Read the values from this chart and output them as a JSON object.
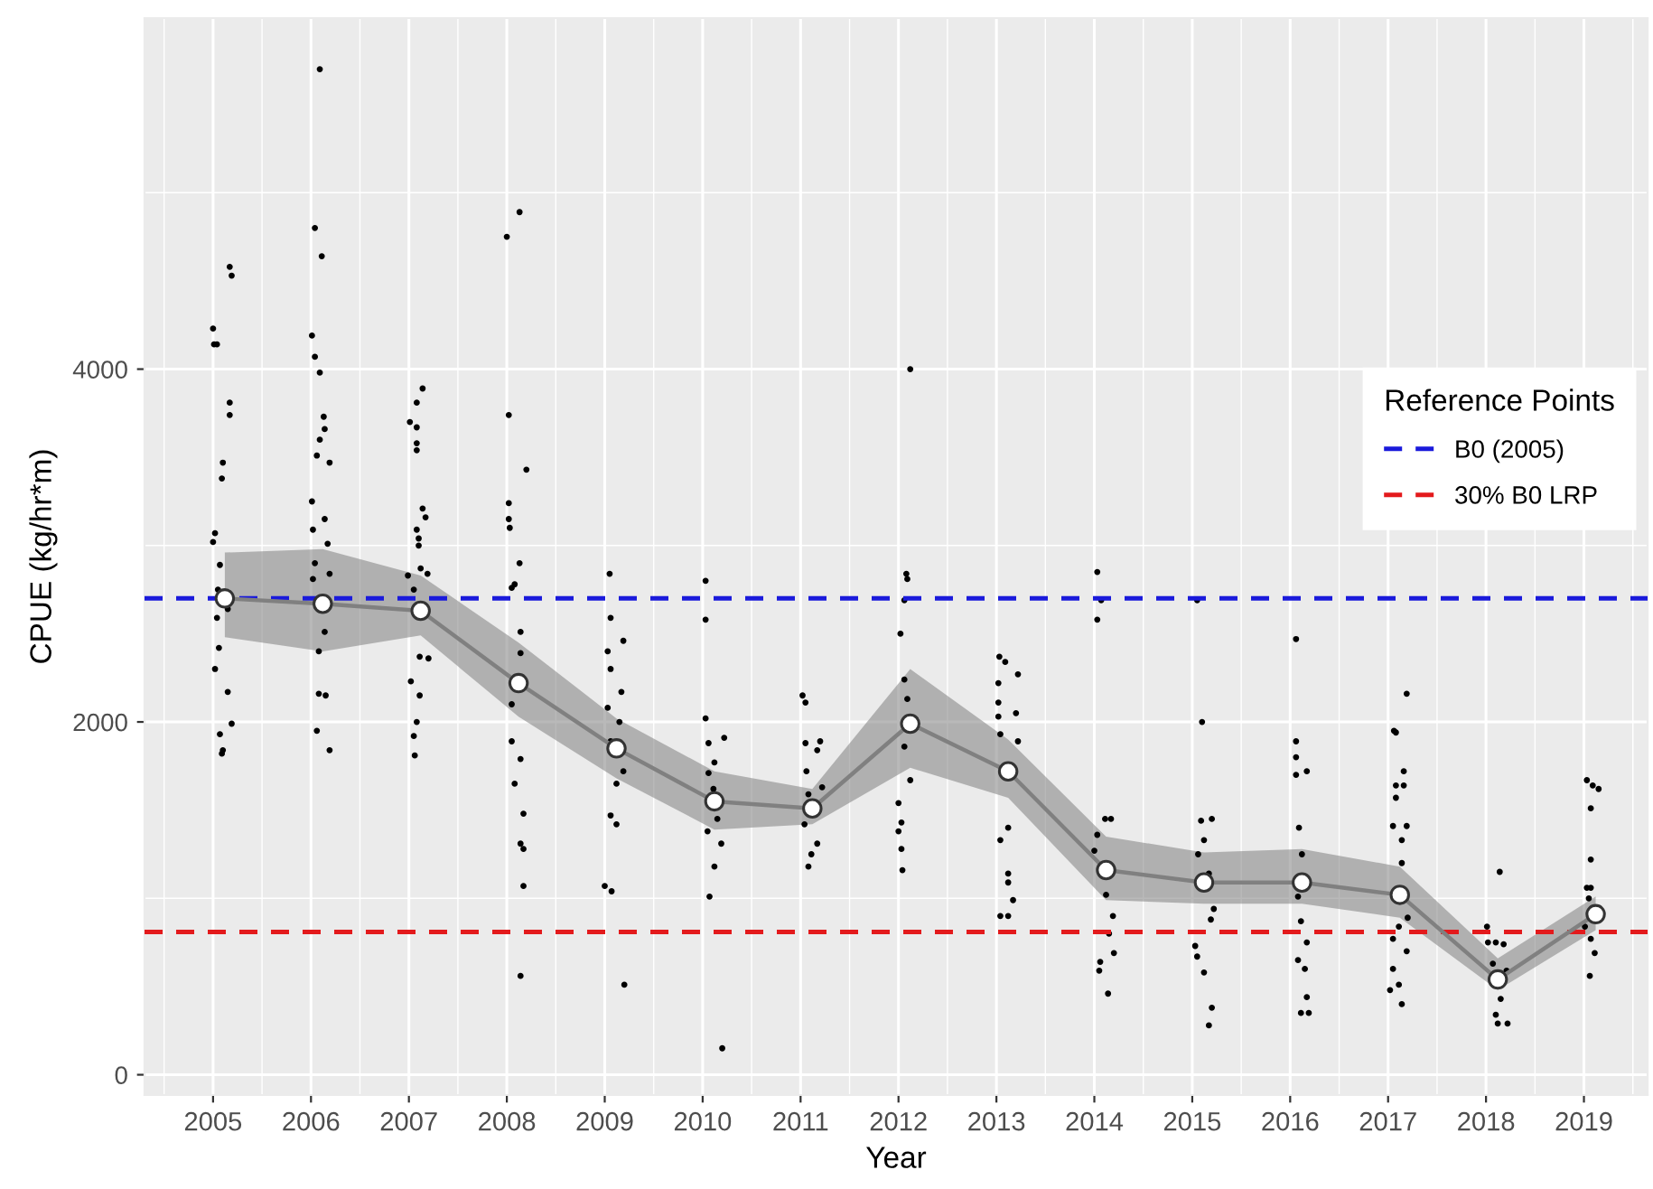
{
  "chart_data": {
    "type": "scatter",
    "xlabel": "Year",
    "ylabel": "CPUE (kg/hr*m)",
    "legend_title": "Reference Points",
    "xlim": [
      2004.3,
      2019.65
    ],
    "xticks": [
      2005,
      2006,
      2007,
      2008,
      2009,
      2010,
      2011,
      2012,
      2013,
      2014,
      2015,
      2016,
      2017,
      2018,
      2019
    ],
    "ylim": [
      -115,
      5990
    ],
    "yticks": [
      0,
      2000,
      4000
    ],
    "grid": true,
    "legend": "right",
    "ref_lines": [
      {
        "axis": "y",
        "value": 2700,
        "label": "B0 (2005)",
        "color": "#1a1adb",
        "line_style": "dashed"
      },
      {
        "axis": "y",
        "value": 810,
        "label": "30% B0 LRP",
        "color": "#e31a1c",
        "line_style": "dashed"
      }
    ],
    "series": [
      {
        "color": "#000000",
        "marker": "circle",
        "x": [
          2005.17,
          2005.19,
          2005.0,
          2005.01,
          2005.04,
          2005.17,
          2005.17,
          2005.1,
          2005.09,
          2005.02,
          2005.0,
          2005.07,
          2005.04,
          2005.06,
          2005.02,
          2005.15,
          2005.19,
          2005.07,
          2005.1,
          2005.09,
          2005.05,
          2005.15,
          2006.09,
          2006.04,
          2006.11,
          2006.01,
          2006.04,
          2006.09,
          2006.13,
          2006.14,
          2006.09,
          2006.06,
          2006.19,
          2006.01,
          2006.14,
          2006.02,
          2006.17,
          2006.04,
          2006.19,
          2006.02,
          2006.14,
          2006.08,
          2006.08,
          2006.15,
          2006.06,
          2006.19,
          2007.14,
          2007.08,
          2007.01,
          2007.08,
          2007.08,
          2007.08,
          2007.14,
          2007.17,
          2007.08,
          2007.1,
          2007.1,
          2007.12,
          2007.19,
          2006.99,
          2007.05,
          2007.11,
          2007.2,
          2007.02,
          2007.11,
          2007.08,
          2007.05,
          2007.06,
          2008.13,
          2008.0,
          2008.02,
          2008.2,
          2008.02,
          2008.02,
          2008.03,
          2008.13,
          2008.08,
          2008.05,
          2008.14,
          2008.14,
          2008.05,
          2008.05,
          2008.14,
          2008.08,
          2008.17,
          2008.14,
          2008.17,
          2008.17,
          2008.14,
          2009.05,
          2009.06,
          2009.19,
          2009.03,
          2009.06,
          2009.17,
          2009.03,
          2009.15,
          2009.06,
          2009.19,
          2009.12,
          2009.06,
          2009.12,
          2009.0,
          2009.07,
          2009.2,
          2010.03,
          2010.03,
          2010.03,
          2010.06,
          2010.22,
          2010.12,
          2010.06,
          2010.11,
          2010.15,
          2010.05,
          2010.19,
          2010.12,
          2010.07,
          2010.2,
          2011.02,
          2011.05,
          2011.2,
          2011.05,
          2011.17,
          2011.06,
          2011.22,
          2011.08,
          2011.04,
          2011.17,
          2011.11,
          2011.08,
          2012.12,
          2012.08,
          2012.09,
          2012.06,
          2012.02,
          2012.06,
          2012.09,
          2012.06,
          2012.12,
          2012.0,
          2012.03,
          2012.0,
          2012.03,
          2012.04,
          2013.03,
          2013.09,
          2013.22,
          2013.02,
          2013.02,
          2013.2,
          2013.02,
          2013.04,
          2013.22,
          2013.12,
          2013.04,
          2013.12,
          2013.12,
          2013.17,
          2013.04,
          2013.12,
          2014.03,
          2014.07,
          2014.03,
          2014.11,
          2014.17,
          2014.03,
          2014.0,
          2014.12,
          2014.19,
          2014.15,
          2014.2,
          2014.06,
          2014.05,
          2014.14,
          2015.05,
          2015.1,
          2015.09,
          2015.2,
          2015.12,
          2015.06,
          2015.17,
          2015.22,
          2015.19,
          2015.03,
          2015.05,
          2015.12,
          2015.2,
          2015.17,
          2016.06,
          2016.06,
          2016.06,
          2016.17,
          2016.06,
          2016.09,
          2016.12,
          2016.08,
          2016.11,
          2016.17,
          2016.08,
          2016.15,
          2016.17,
          2016.11,
          2016.19,
          2017.19,
          2017.08,
          2017.06,
          2017.16,
          2017.08,
          2017.16,
          2017.08,
          2017.05,
          2017.19,
          2017.14,
          2017.14,
          2017.2,
          2017.11,
          2017.05,
          2017.19,
          2017.05,
          2017.11,
          2017.02,
          2017.14,
          2018.14,
          2018.01,
          2018.18,
          2018.02,
          2018.1,
          2018.07,
          2018.21,
          2018.15,
          2018.1,
          2018.12,
          2018.22,
          2019.03,
          2019.09,
          2019.15,
          2019.07,
          2019.07,
          2019.03,
          2019.07,
          2019.05,
          2019.01,
          2019.07,
          2019.11,
          2019.06
        ],
        "values": [
          4580,
          4530,
          4230,
          4140,
          4140,
          3810,
          3740,
          3470,
          3380,
          3070,
          3020,
          2890,
          2590,
          2420,
          2300,
          2170,
          1990,
          1930,
          1840,
          1820,
          2750,
          2640,
          5700,
          4800,
          4640,
          4190,
          4070,
          3980,
          3730,
          3660,
          3600,
          3510,
          3470,
          3250,
          3150,
          3090,
          3010,
          2900,
          2840,
          2810,
          2510,
          2400,
          2160,
          2150,
          1950,
          1840,
          3890,
          3810,
          3700,
          3670,
          3580,
          3540,
          3210,
          3160,
          3090,
          3040,
          3000,
          2870,
          2840,
          2830,
          2750,
          2370,
          2360,
          2230,
          2150,
          2000,
          1920,
          1810,
          4890,
          4750,
          3740,
          3430,
          3240,
          3150,
          3100,
          2900,
          2780,
          2760,
          2510,
          2390,
          2100,
          1890,
          1790,
          1650,
          1480,
          1310,
          1280,
          1070,
          560,
          2840,
          2590,
          2460,
          2400,
          2300,
          2170,
          2080,
          2000,
          1890,
          1720,
          1650,
          1470,
          1420,
          1070,
          1040,
          510,
          2800,
          2580,
          2020,
          1880,
          1910,
          1770,
          1710,
          1620,
          1450,
          1380,
          1310,
          1180,
          1010,
          150,
          2150,
          2110,
          1890,
          1880,
          1840,
          1720,
          1630,
          1590,
          1420,
          1310,
          1250,
          1180,
          4000,
          2840,
          2810,
          2690,
          2500,
          2240,
          2130,
          1860,
          1670,
          1540,
          1430,
          1380,
          1280,
          1160,
          2370,
          2340,
          2270,
          2220,
          2110,
          2050,
          2030,
          1930,
          1890,
          1400,
          1330,
          1140,
          1090,
          990,
          900,
          900,
          2850,
          2690,
          2580,
          1450,
          1450,
          1360,
          1270,
          1020,
          900,
          800,
          690,
          640,
          590,
          460,
          2690,
          2000,
          1440,
          1450,
          1330,
          1250,
          1140,
          940,
          880,
          730,
          670,
          580,
          380,
          280,
          2470,
          1890,
          1800,
          1720,
          1700,
          1400,
          1250,
          1010,
          870,
          750,
          650,
          600,
          440,
          350,
          350,
          2160,
          1940,
          1950,
          1720,
          1640,
          1640,
          1570,
          1410,
          1410,
          1330,
          1200,
          890,
          840,
          770,
          700,
          600,
          510,
          480,
          400,
          1150,
          840,
          740,
          750,
          750,
          630,
          590,
          430,
          340,
          290,
          290,
          1670,
          1640,
          1620,
          1510,
          1220,
          1060,
          1060,
          1000,
          840,
          770,
          690,
          560
        ]
      },
      {
        "type": "line",
        "color": "#808080",
        "marker": "circle",
        "line_style": "solid",
        "x": [
          2005.12,
          2006.12,
          2007.12,
          2008.12,
          2009.12,
          2010.12,
          2011.12,
          2012.12,
          2013.12,
          2014.12,
          2015.12,
          2016.12,
          2017.12,
          2018.12,
          2019.12
        ],
        "values": [
          2700,
          2670,
          2630,
          2220,
          1850,
          1550,
          1510,
          1990,
          1720,
          1160,
          1090,
          1090,
          1020,
          540,
          910
        ],
        "lower": [
          2480,
          2400,
          2490,
          2030,
          1680,
          1390,
          1420,
          1740,
          1570,
          990,
          970,
          970,
          890,
          480,
          820
        ],
        "upper": [
          2960,
          2980,
          2830,
          2450,
          2020,
          1720,
          1620,
          2300,
          1900,
          1350,
          1260,
          1280,
          1180,
          660,
          1010
        ]
      }
    ]
  }
}
